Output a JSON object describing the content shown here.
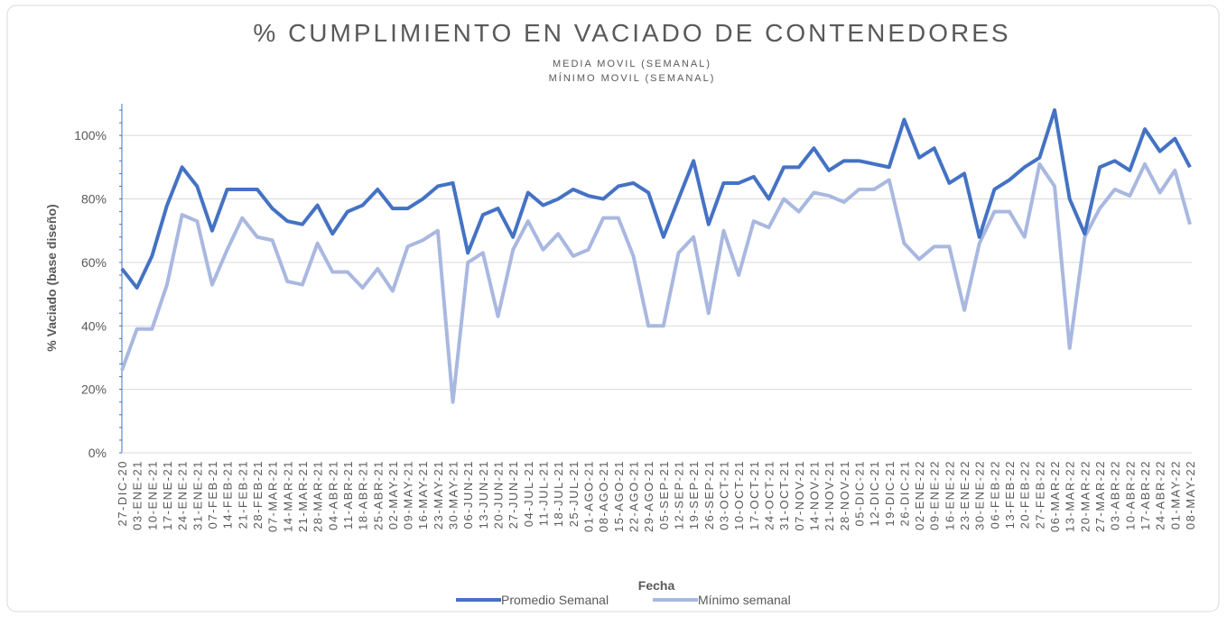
{
  "chart_data": {
    "type": "line",
    "title": "% CUMPLIMIENTO EN VACIADO DE CONTENEDORES",
    "subtitle": [
      "MEDIA MOVIL (SEMANAL)",
      "MÍNIMO MOVIL (SEMANAL)"
    ],
    "x_label": "Fecha",
    "y_label": "% Vaciado (base diseño)",
    "categories": [
      "27-DIC-20",
      "03-ENE-21",
      "10-ENE-21",
      "17-ENE-21",
      "24-ENE-21",
      "31-ENE-21",
      "07-FEB-21",
      "14-FEB-21",
      "21-FEB-21",
      "28-FEB-21",
      "07-MAR-21",
      "14-MAR-21",
      "21-MAR-21",
      "28-MAR-21",
      "04-ABR-21",
      "11-ABR-21",
      "18-ABR-21",
      "25-ABR-21",
      "02-MAY-21",
      "09-MAY-21",
      "16-MAY-21",
      "23-MAY-21",
      "30-MAY-21",
      "06-JUN-21",
      "13-JUN-21",
      "20-JUN-21",
      "27-JUN-21",
      "04-JUL-21",
      "11-JUL-21",
      "18-JUL-21",
      "25-JUL-21",
      "01-AGO-21",
      "08-AGO-21",
      "15-AGO-21",
      "22-AGO-21",
      "29-AGO-21",
      "05-SEP-21",
      "12-SEP-21",
      "19-SEP-21",
      "26-SEP-21",
      "03-OCT-21",
      "10-OCT-21",
      "17-OCT-21",
      "24-OCT-21",
      "31-OCT-21",
      "07-NOV-21",
      "14-NOV-21",
      "21-NOV-21",
      "28-NOV-21",
      "05-DIC-21",
      "12-DIC-21",
      "19-DIC-21",
      "26-DIC-21",
      "02-ENE-22",
      "09-ENE-22",
      "16-ENE-22",
      "23-ENE-22",
      "30-ENE-22",
      "06-FEB-22",
      "13-FEB-22",
      "20-FEB-22",
      "27-FEB-22",
      "06-MAR-22",
      "13-MAR-22",
      "20-MAR-22",
      "27-MAR-22",
      "03-ABR-22",
      "10-ABR-22",
      "17-ABR-22",
      "24-ABR-22",
      "01-MAY-22",
      "08-MAY-22"
    ],
    "series": [
      {
        "name": "Promedio Semanal",
        "color": "#4472c4",
        "values": [
          58,
          52,
          62,
          78,
          90,
          84,
          70,
          83,
          83,
          83,
          77,
          73,
          72,
          78,
          69,
          76,
          78,
          83,
          77,
          77,
          80,
          84,
          85,
          63,
          75,
          77,
          68,
          82,
          78,
          80,
          83,
          81,
          80,
          84,
          85,
          82,
          68,
          80,
          92,
          72,
          85,
          85,
          87,
          80,
          90,
          90,
          96,
          89,
          92,
          92,
          91,
          90,
          105,
          93,
          96,
          85,
          88,
          68,
          83,
          86,
          90,
          93,
          108,
          80,
          69,
          90,
          92,
          89,
          102,
          95,
          99,
          90
        ]
      },
      {
        "name": "Mínimo semanal",
        "color": "#a9b8e0",
        "values": [
          26,
          39,
          39,
          53,
          75,
          73,
          53,
          64,
          74,
          68,
          67,
          54,
          53,
          66,
          57,
          57,
          52,
          58,
          51,
          65,
          67,
          70,
          16,
          60,
          63,
          43,
          64,
          73,
          64,
          69,
          62,
          64,
          74,
          74,
          62,
          40,
          40,
          63,
          68,
          44,
          70,
          56,
          73,
          71,
          80,
          76,
          82,
          81,
          79,
          83,
          83,
          86,
          66,
          61,
          65,
          65,
          45,
          66,
          76,
          76,
          68,
          91,
          84,
          33,
          68,
          77,
          83,
          81,
          91,
          82,
          89,
          72
        ]
      }
    ],
    "ylim": [
      0,
      110
    ],
    "yticks": [
      {
        "value": 0,
        "label": "0%"
      },
      {
        "value": 20,
        "label": "20%"
      },
      {
        "value": 40,
        "label": "40%"
      },
      {
        "value": 60,
        "label": "60%"
      },
      {
        "value": 80,
        "label": "80%"
      },
      {
        "value": 100,
        "label": "100%"
      }
    ],
    "grid": true
  }
}
